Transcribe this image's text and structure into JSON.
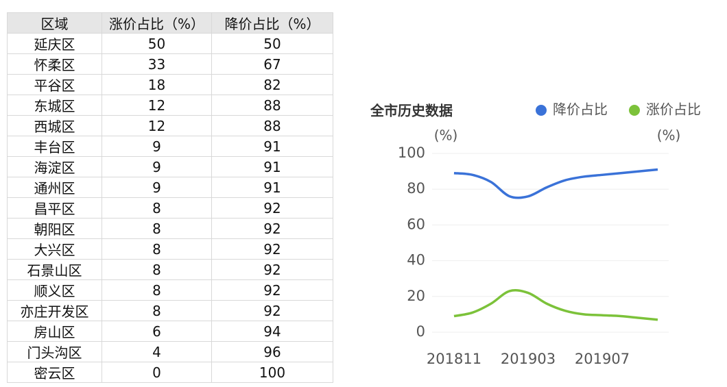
{
  "table": {
    "header": [
      "区域",
      "涨价占比（%）",
      "降价占比（%）"
    ],
    "rows": [
      [
        "延庆区",
        50,
        50
      ],
      [
        "怀柔区",
        33,
        67
      ],
      [
        "平谷区",
        18,
        82
      ],
      [
        "东城区",
        12,
        88
      ],
      [
        "西城区",
        12,
        88
      ],
      [
        "丰台区",
        9,
        91
      ],
      [
        "海淀区",
        9,
        91
      ],
      [
        "通州区",
        9,
        91
      ],
      [
        "昌平区",
        8,
        92
      ],
      [
        "朝阳区",
        8,
        92
      ],
      [
        "大兴区",
        8,
        92
      ],
      [
        "石景山区",
        8,
        92
      ],
      [
        "顺义区",
        8,
        92
      ],
      [
        "亦庄开发区",
        8,
        92
      ],
      [
        "房山区",
        6,
        94
      ],
      [
        "门头沟区",
        4,
        96
      ],
      [
        "密云区",
        0,
        100
      ]
    ]
  },
  "chart_data": {
    "type": "line",
    "title": "全市历史数据",
    "ylabel": "(%)",
    "y2label": "(%)",
    "categories": [
      "201811",
      null,
      null,
      null,
      "201903",
      null,
      null,
      null,
      "201907",
      null,
      null,
      null
    ],
    "series": [
      {
        "name": "降价占比",
        "color": "#3a72d8",
        "values": [
          89,
          88,
          84,
          76,
          76,
          81,
          85,
          87,
          88,
          89,
          90,
          91
        ]
      },
      {
        "name": "涨价占比",
        "color": "#7cc23a",
        "values": [
          9,
          11,
          16,
          23,
          22,
          16,
          12,
          10,
          9.5,
          9,
          8,
          7
        ]
      }
    ],
    "ylim": [
      0,
      100
    ],
    "yticks": [
      0,
      20,
      40,
      60,
      80,
      100
    ],
    "grid": true
  }
}
